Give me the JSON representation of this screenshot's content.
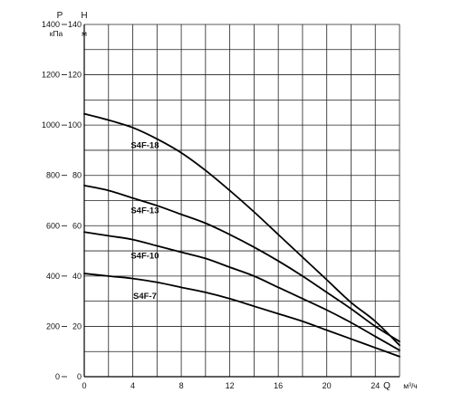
{
  "chart_data": {
    "type": "line",
    "title": "",
    "xlabel": "Q",
    "xunit": "м³/ч",
    "ylabel": "H",
    "yunit": "м",
    "y2label": "P",
    "y2unit": "кПа",
    "xlim": [
      0,
      26
    ],
    "ylim": [
      0,
      140
    ],
    "x_ticks": [
      0,
      4,
      8,
      12,
      16,
      20,
      24
    ],
    "x_tick_labels": [
      "0",
      "4",
      "8",
      "12",
      "16",
      "20",
      "24"
    ],
    "y_ticks": [
      0,
      20,
      40,
      60,
      80,
      100,
      120,
      140
    ],
    "y_tick_labels": [
      "0",
      "20",
      "40",
      "60",
      "80",
      "100",
      "120",
      "140"
    ],
    "y2_ticks": [
      0,
      20,
      40,
      60,
      80,
      100,
      120,
      140
    ],
    "y2_tick_labels": [
      "0",
      "200",
      "400",
      "600",
      "800",
      "1000",
      "1200",
      "1400"
    ],
    "x_grid_step": 2,
    "y_grid_step": 10,
    "grid": true,
    "legend": "none",
    "series": [
      {
        "name": "S4F-18",
        "x": [
          0,
          2,
          4,
          6,
          8,
          10,
          12,
          14,
          16,
          18,
          20,
          22,
          24,
          26
        ],
        "y": [
          104.5,
          102,
          99,
          94.5,
          89,
          82,
          74,
          65.5,
          56.5,
          47.5,
          38.5,
          29.5,
          22,
          12.5
        ]
      },
      {
        "name": "S4F-13",
        "x": [
          0,
          2,
          4,
          6,
          8,
          10,
          12,
          14,
          16,
          18,
          20,
          22,
          24,
          26
        ],
        "y": [
          76,
          74,
          71,
          68,
          64.5,
          61,
          56.5,
          51.5,
          46,
          40,
          33.5,
          27,
          20,
          14
        ]
      },
      {
        "name": "S4F-10",
        "x": [
          0,
          2,
          4,
          6,
          8,
          10,
          12,
          14,
          16,
          18,
          20,
          22,
          24,
          26
        ],
        "y": [
          57.5,
          56,
          54.5,
          52,
          49.5,
          47,
          43.5,
          40,
          35.5,
          31,
          26.5,
          21.5,
          16,
          10.5
        ]
      },
      {
        "name": "S4F-7",
        "x": [
          0,
          2,
          4,
          6,
          8,
          10,
          12,
          14,
          16,
          18,
          20,
          22,
          24,
          26
        ],
        "y": [
          41,
          40,
          39,
          37.5,
          35.5,
          33.5,
          31,
          28,
          25,
          22,
          18.5,
          15,
          11.5,
          8
        ]
      }
    ]
  }
}
